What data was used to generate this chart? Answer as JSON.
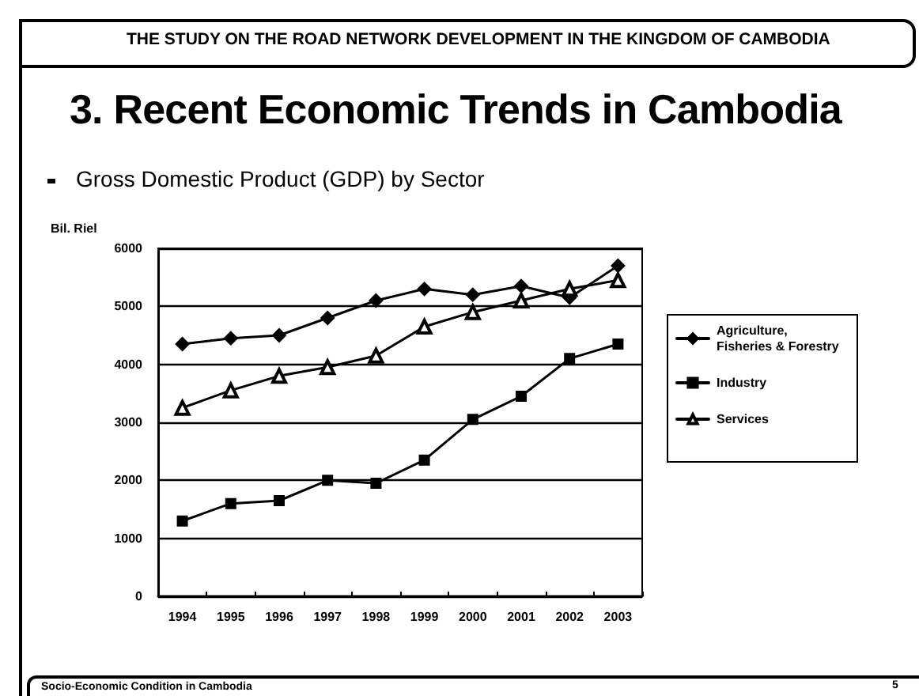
{
  "chart_data": {
    "type": "line",
    "title": "3. Recent Economic Trends in Cambodia",
    "subtitle": "Gross Domestic Product (GDP) by Sector",
    "ylabel": "Bil. Riel",
    "annotations": [
      "THE STUDY ON THE ROAD NETWORK DEVELOPMENT IN THE KINGDOM OF CAMBODIA",
      "Socio-Economic Condition in Cambodia",
      "5"
    ],
    "categories": [
      "1994",
      "1995",
      "1996",
      "1997",
      "1998",
      "1999",
      "2000",
      "2001",
      "2002",
      "2003"
    ],
    "series": [
      {
        "name": "Agriculture, Fisheries & Forestry",
        "color": "#000000",
        "marker": "diamond",
        "values": [
          4350,
          4450,
          4500,
          4800,
          5100,
          5300,
          5200,
          5350,
          5150,
          5700
        ]
      },
      {
        "name": "Industry",
        "color": "#000000",
        "marker": "square",
        "values": [
          1300,
          1600,
          1650,
          2000,
          1950,
          2350,
          3050,
          3450,
          4100,
          4350
        ]
      },
      {
        "name": "Services",
        "color": "#000000",
        "marker": "triangle",
        "values": [
          3250,
          3550,
          3800,
          3950,
          4150,
          4650,
          4900,
          5100,
          5300,
          5450
        ]
      }
    ],
    "ylim": [
      0,
      6000
    ],
    "yticks": [
      0,
      1000,
      2000,
      3000,
      4000,
      5000,
      6000
    ],
    "grid": "y",
    "legend": "right",
    "line_style": "solid"
  }
}
